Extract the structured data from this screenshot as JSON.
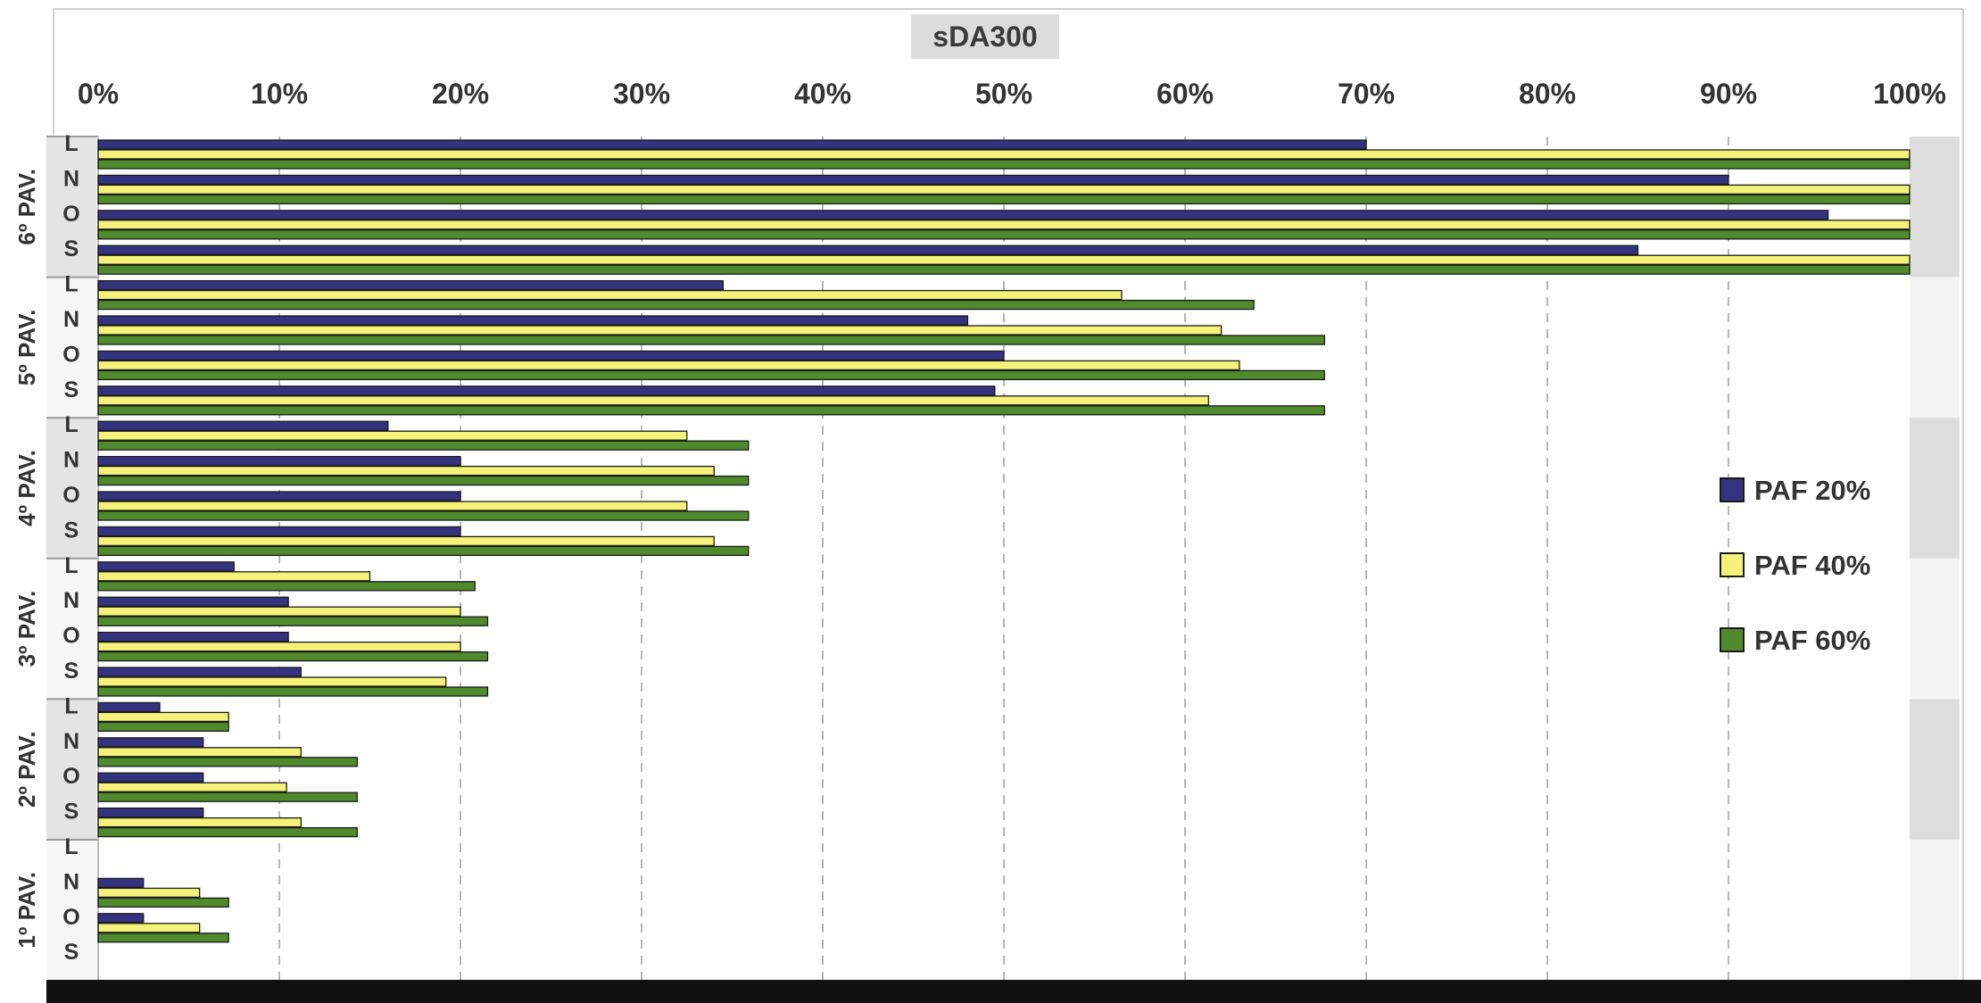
{
  "chart_data": {
    "type": "bar",
    "orientation": "horizontal",
    "title": "sDA300",
    "x_axis": {
      "range": [
        0,
        100
      ],
      "ticks": [
        "0%",
        "10%",
        "20%",
        "30%",
        "40%",
        "50%",
        "60%",
        "70%",
        "80%",
        "90%",
        "100%"
      ],
      "gridlines": "dashed"
    },
    "groups": [
      {
        "label": "6º PAV.",
        "categories": [
          "L",
          "N",
          "O",
          "S"
        ],
        "shaded": true
      },
      {
        "label": "5º PAV.",
        "categories": [
          "L",
          "N",
          "O",
          "S"
        ],
        "shaded": false
      },
      {
        "label": "4º PAV.",
        "categories": [
          "L",
          "N",
          "O",
          "S"
        ],
        "shaded": true
      },
      {
        "label": "3º PAV.",
        "categories": [
          "L",
          "N",
          "O",
          "S"
        ],
        "shaded": false
      },
      {
        "label": "2º PAV.",
        "categories": [
          "L",
          "N",
          "O",
          "S"
        ],
        "shaded": true
      },
      {
        "label": "1º PAV.",
        "categories": [
          "L",
          "N",
          "O",
          "S"
        ],
        "shaded": false
      }
    ],
    "series": [
      {
        "name": "PAF 20%",
        "color": "#35337f",
        "values": [
          70,
          90,
          95.5,
          85,
          34.5,
          48,
          50,
          49.5,
          16,
          20,
          20,
          20,
          7.5,
          10.5,
          10.5,
          11.2,
          3.4,
          5.8,
          5.8,
          5.8,
          null,
          2.5,
          2.5,
          null
        ]
      },
      {
        "name": "PAF 40%",
        "color": "#f5f27a",
        "values": [
          100,
          100,
          100,
          100,
          56.5,
          62,
          63,
          61.3,
          32.5,
          34,
          32.5,
          34,
          15,
          20,
          20,
          19.2,
          7.2,
          11.2,
          10.4,
          11.2,
          null,
          5.6,
          5.6,
          null
        ]
      },
      {
        "name": "PAF 60%",
        "color": "#4f8a2c",
        "values": [
          100,
          100,
          100,
          100,
          63.8,
          67.7,
          67.7,
          67.7,
          35.9,
          35.9,
          35.9,
          35.9,
          20.8,
          21.5,
          21.5,
          21.5,
          7.2,
          14.3,
          14.3,
          14.3,
          null,
          7.2,
          7.2,
          null
        ]
      }
    ],
    "legend": {
      "position": "right"
    }
  }
}
